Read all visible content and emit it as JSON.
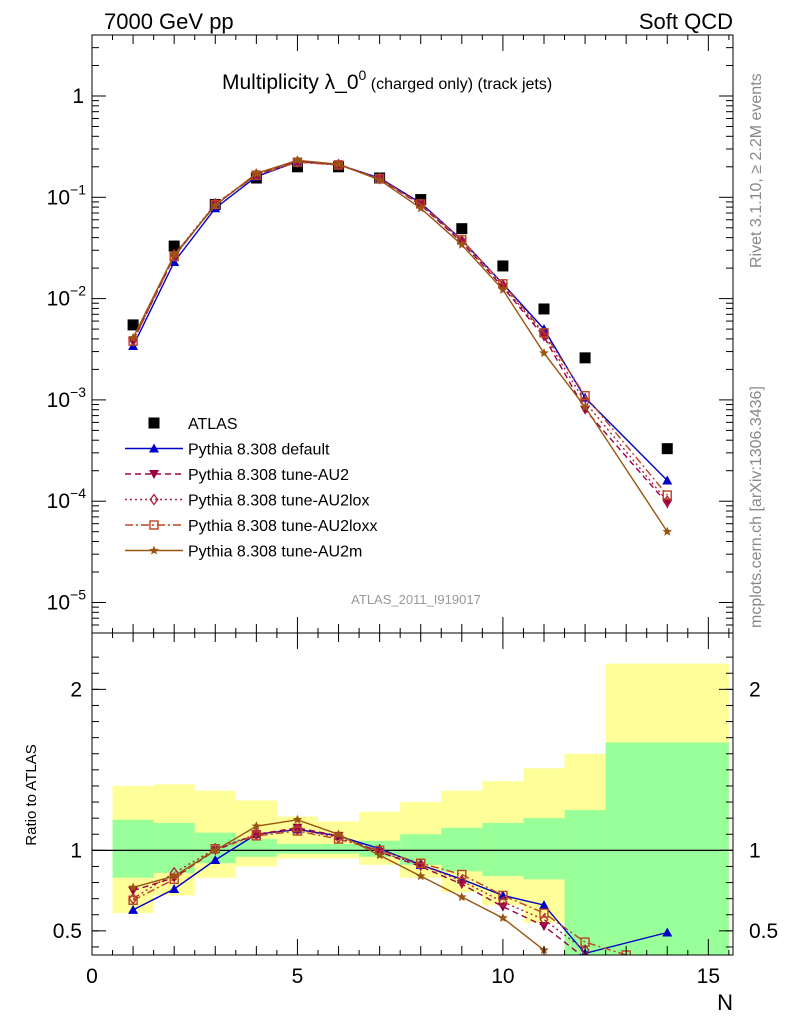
{
  "header": {
    "left": "7000 GeV pp",
    "right": "Soft QCD"
  },
  "side_labels": {
    "rivet": "Rivet 3.1.10, ≥ 2.2M events",
    "mcplots": "mcplots.cern.ch [arXiv:1306.3436]"
  },
  "analysis_tag": "ATLAS_2011_I919017",
  "title": {
    "main": "Multiplicity λ_0",
    "sup": "0",
    "rest": " (charged only) (track jets)"
  },
  "colors": {
    "default": "#0000cc",
    "au2": "#990044",
    "au2lox": "#aa2244",
    "au2loxx": "#bb4422",
    "au2m": "#995511",
    "green": "#99ff99",
    "yellow": "#ffff99"
  },
  "chart_data": [
    {
      "type": "scatter",
      "panel": "main",
      "title": "Multiplicity λ_0^0 (charged only) (track jets)",
      "xlabel": "",
      "ylabel": "",
      "yscale": "log",
      "xlim": [
        0,
        15.6
      ],
      "ylim": [
        5e-06,
        4
      ],
      "y_ticks": [
        {
          "v": 1e-05,
          "base": "10",
          "exp": "−5"
        },
        {
          "v": 0.0001,
          "base": "10",
          "exp": "−4"
        },
        {
          "v": 0.001,
          "base": "10",
          "exp": "−3"
        },
        {
          "v": 0.01,
          "base": "10",
          "exp": "−2"
        },
        {
          "v": 0.1,
          "base": "10",
          "exp": "−1"
        },
        {
          "v": 1,
          "base": "1",
          "exp": ""
        }
      ],
      "legend_position": "bottom-left",
      "series": [
        {
          "name": "ATLAS",
          "marker": "square",
          "color": "#000000",
          "line": "none",
          "x": [
            1,
            2,
            3,
            4,
            5,
            6,
            7,
            8,
            9,
            10,
            11,
            12,
            14
          ],
          "y": [
            0.0055,
            0.033,
            0.085,
            0.155,
            0.2,
            0.2,
            0.155,
            0.095,
            0.049,
            0.021,
            0.0079,
            0.0026,
            0.00033
          ]
        },
        {
          "name": "Pythia 8.308 default",
          "marker": "triangle-up",
          "color": "#0000cc",
          "line": "solid",
          "x": [
            1,
            2,
            3,
            4,
            5,
            6,
            7,
            8,
            9,
            10,
            11,
            12,
            14
          ],
          "y": [
            0.0034,
            0.023,
            0.078,
            0.16,
            0.225,
            0.21,
            0.155,
            0.088,
            0.038,
            0.014,
            0.005,
            0.00105,
            0.00016
          ]
        },
        {
          "name": "Pythia 8.308 tune-AU2",
          "marker": "triangle-down",
          "color": "#990044",
          "line": "dashed",
          "x": [
            1,
            2,
            3,
            4,
            5,
            6,
            7,
            8,
            9,
            10,
            11,
            12,
            14
          ],
          "y": [
            0.0038,
            0.026,
            0.085,
            0.168,
            0.225,
            0.212,
            0.152,
            0.084,
            0.036,
            0.013,
            0.0042,
            0.0008,
            9.5e-05
          ]
        },
        {
          "name": "Pythia 8.308 tune-AU2lox",
          "marker": "diamond",
          "color": "#aa2244",
          "line": "dotted",
          "x": [
            1,
            2,
            3,
            4,
            5,
            6,
            7,
            8,
            9,
            10,
            11,
            12,
            14
          ],
          "y": [
            0.0039,
            0.027,
            0.086,
            0.168,
            0.224,
            0.21,
            0.153,
            0.085,
            0.037,
            0.0135,
            0.0044,
            0.00095,
            0.0001
          ]
        },
        {
          "name": "Pythia 8.308 tune-AU2loxx",
          "marker": "open-square",
          "color": "#bb4422",
          "line": "dashdot",
          "x": [
            1,
            2,
            3,
            4,
            5,
            6,
            7,
            8,
            9,
            10,
            11,
            12,
            14
          ],
          "y": [
            0.0038,
            0.026,
            0.085,
            0.165,
            0.222,
            0.208,
            0.153,
            0.086,
            0.038,
            0.014,
            0.0046,
            0.0011,
            0.000115
          ]
        },
        {
          "name": "Pythia 8.308 tune-AU2m",
          "marker": "star",
          "color": "#995511",
          "line": "solid",
          "x": [
            1,
            2,
            3,
            4,
            5,
            6,
            7,
            8,
            9,
            10,
            11,
            12,
            14
          ],
          "y": [
            0.0041,
            0.027,
            0.083,
            0.172,
            0.232,
            0.212,
            0.148,
            0.078,
            0.034,
            0.0122,
            0.0029,
            0.00085,
            5e-05
          ]
        }
      ]
    },
    {
      "type": "line",
      "panel": "ratio",
      "xlabel": "N",
      "ylabel": "Ratio to ATLAS",
      "xlim": [
        0,
        15.6
      ],
      "ylim": [
        0.35,
        2.35
      ],
      "x_ticks": [
        0,
        5,
        10,
        15
      ],
      "y_ticks": [
        0.5,
        1,
        2
      ],
      "bands": {
        "edges": [
          0.5,
          1.5,
          2.5,
          3.5,
          4.5,
          5.5,
          6.5,
          7.5,
          8.5,
          9.5,
          10.5,
          11.5,
          12.5,
          15.5
        ],
        "green_lo": [
          0.83,
          0.86,
          0.92,
          0.96,
          0.98,
          0.98,
          0.96,
          0.91,
          0.87,
          0.84,
          0.82,
          0.1,
          0.1
        ],
        "green_hi": [
          1.19,
          1.17,
          1.11,
          1.07,
          1.04,
          1.04,
          1.06,
          1.1,
          1.14,
          1.17,
          1.2,
          1.25,
          1.67
        ],
        "yellow_lo": [
          0.61,
          0.72,
          0.83,
          0.9,
          0.95,
          0.95,
          0.91,
          0.83,
          0.74,
          0.66,
          0.55,
          0.0,
          0.0
        ],
        "yellow_hi": [
          1.4,
          1.41,
          1.37,
          1.31,
          1.21,
          1.18,
          1.24,
          1.3,
          1.37,
          1.43,
          1.51,
          1.6,
          2.16
        ]
      },
      "reference_line": 1,
      "series": [
        {
          "name": "Pythia 8.308 default",
          "color": "#0000cc",
          "marker": "triangle-up",
          "x": [
            1,
            2,
            3,
            4,
            5,
            6,
            7,
            8,
            9,
            10,
            11,
            12,
            14
          ],
          "y": [
            0.63,
            0.76,
            0.94,
            1.1,
            1.13,
            1.09,
            1.01,
            0.91,
            0.82,
            0.72,
            0.66,
            0.36,
            0.49
          ]
        },
        {
          "name": "Pythia 8.308 tune-AU2",
          "color": "#990044",
          "marker": "triangle-down",
          "x": [
            1,
            2,
            3,
            4,
            5,
            6,
            7,
            8,
            9,
            10,
            11,
            12
          ],
          "y": [
            0.75,
            0.83,
            1.0,
            1.1,
            1.14,
            1.09,
            0.99,
            0.9,
            0.79,
            0.65,
            0.53,
            0.33
          ]
        },
        {
          "name": "Pythia 8.308 tune-AU2lox",
          "color": "#aa2244",
          "marker": "diamond",
          "x": [
            1,
            2,
            3,
            4,
            5,
            6,
            7,
            8,
            9,
            10,
            11,
            12
          ],
          "y": [
            0.7,
            0.86,
            1.01,
            1.1,
            1.13,
            1.08,
            0.99,
            0.91,
            0.81,
            0.68,
            0.57,
            0.38
          ]
        },
        {
          "name": "Pythia 8.308 tune-AU2loxx",
          "color": "#bb4422",
          "marker": "open-square",
          "x": [
            1,
            2,
            3,
            4,
            5,
            6,
            7,
            8,
            9,
            10,
            11,
            12,
            13
          ],
          "y": [
            0.69,
            0.82,
            1.01,
            1.09,
            1.12,
            1.07,
            1.0,
            0.92,
            0.85,
            0.72,
            0.61,
            0.43,
            0.35
          ]
        },
        {
          "name": "Pythia 8.308 tune-AU2m",
          "color": "#995511",
          "marker": "star",
          "x": [
            1,
            2,
            3,
            4,
            5,
            6,
            7,
            8,
            9,
            10,
            11
          ],
          "y": [
            0.77,
            0.84,
            1.0,
            1.15,
            1.19,
            1.1,
            0.97,
            0.84,
            0.71,
            0.58,
            0.38
          ]
        }
      ]
    }
  ]
}
